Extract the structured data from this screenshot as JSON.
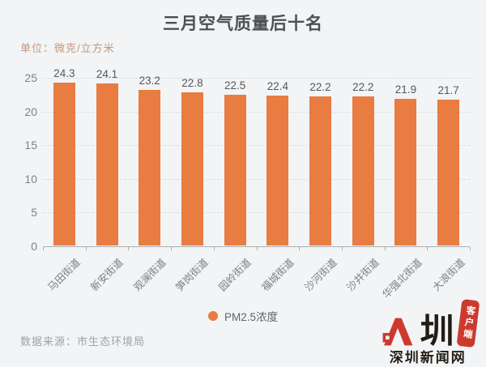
{
  "title": "三月空气质量后十名",
  "unit_label": "单位：微克/立方米",
  "source_label": "数据来源：市生态环境局",
  "legend": {
    "label": "PM2.5浓度",
    "dot_color": "#e87c41"
  },
  "logo": {
    "char": "圳",
    "site_name": "深圳新闻网",
    "badge": "客户端",
    "red": "#cc3a2e",
    "black": "#231c15"
  },
  "chart_data": {
    "type": "bar",
    "title": "三月空气质量后十名",
    "unit": "微克/立方米",
    "categories": [
      "马田街道",
      "新安街道",
      "观澜街道",
      "笋岗街道",
      "园岭街道",
      "福城街道",
      "沙河街道",
      "沙井街道",
      "华强北街道",
      "大浪街道"
    ],
    "series": [
      {
        "name": "PM2.5浓度",
        "values": [
          24.3,
          24.1,
          23.2,
          22.8,
          22.5,
          22.4,
          22.2,
          22.2,
          21.9,
          21.7
        ]
      }
    ],
    "ylabel": "",
    "xlabel": "",
    "ylim": [
      0,
      25
    ],
    "yticks": [
      0,
      5,
      10,
      15,
      20,
      25
    ],
    "grid": "dashed-horizontal",
    "legend_position": "bottom",
    "bar_color": "#e87c41",
    "background": "#f2f4f5"
  }
}
